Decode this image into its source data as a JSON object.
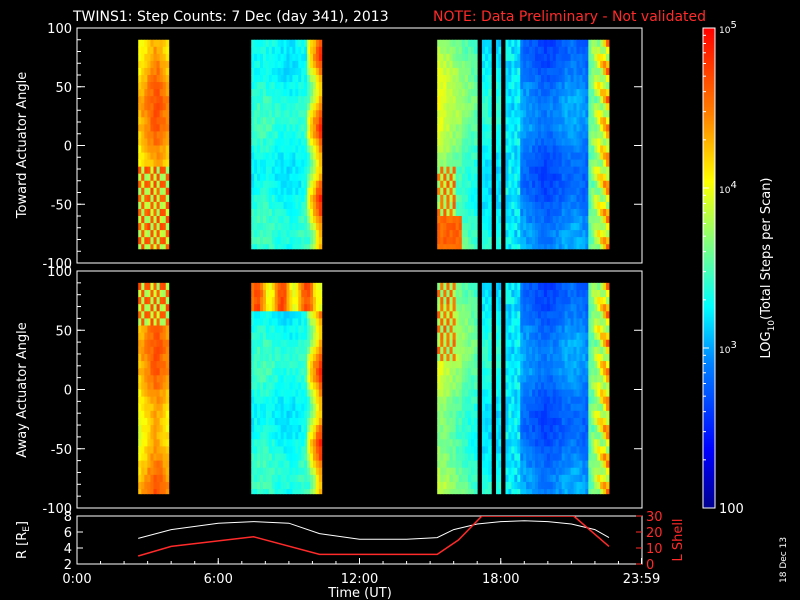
{
  "title": {
    "main": "TWINS1: Step Counts:  7 Dec (day 341), 2013",
    "note": "NOTE: Data Preliminary - Not validated"
  },
  "colors": {
    "background": "#000000",
    "axes": "#ffffff",
    "note": "#ff2a2a",
    "r_line": "#ffffff",
    "lshell_line": "#ff2a2a"
  },
  "chart_data": [
    {
      "type": "heatmap",
      "name": "toward-panel",
      "ylabel": "Toward Actuator Angle",
      "ylim": [
        -100,
        100
      ],
      "yticks": [
        100,
        50,
        0,
        -50,
        -100
      ],
      "xlim": [
        0,
        24
      ],
      "data_blocks_hours": [
        [
          2.6,
          3.9
        ],
        [
          7.4,
          10.4
        ],
        [
          15.3,
          17.0
        ],
        [
          17.2,
          17.6
        ],
        [
          17.8,
          18.0
        ],
        [
          18.2,
          22.6
        ]
      ],
      "angle_range": [
        -88,
        90
      ],
      "colormap": "rainbow (log scale)"
    },
    {
      "type": "heatmap",
      "name": "away-panel",
      "ylabel": "Away Actuator Angle",
      "ylim": [
        -100,
        100
      ],
      "yticks": [
        100,
        50,
        0,
        -50,
        -100
      ],
      "xlim": [
        0,
        24
      ],
      "data_blocks_hours": [
        [
          2.6,
          3.9
        ],
        [
          7.4,
          10.4
        ],
        [
          15.3,
          17.0
        ],
        [
          17.2,
          17.6
        ],
        [
          17.8,
          18.0
        ],
        [
          18.2,
          22.6
        ]
      ],
      "angle_range": [
        -88,
        90
      ],
      "colormap": "rainbow (log scale)"
    },
    {
      "type": "line",
      "name": "orbit-panel",
      "ylabel_left": "R [RE]",
      "ylabel_right": "L Shell",
      "xlabel": "Time (UT)",
      "xticks": [
        "0:00",
        "6:00",
        "12:00",
        "18:00",
        "23:59"
      ],
      "xtick_hours": [
        0,
        6,
        12,
        18,
        23.98
      ],
      "ylim_left": [
        2,
        8
      ],
      "yticks_left": [
        2,
        4,
        6,
        8
      ],
      "ylim_right": [
        0,
        30
      ],
      "yticks_right": [
        0,
        10,
        20,
        30
      ],
      "series": [
        {
          "name": "R",
          "axis": "left",
          "x": [
            2.6,
            4,
            6,
            7.5,
            9,
            10.3,
            12,
            14,
            15.3,
            16,
            17,
            18,
            19,
            20,
            21,
            22,
            22.6
          ],
          "y": [
            5.2,
            6.3,
            7.1,
            7.3,
            7.1,
            5.8,
            5.1,
            5.1,
            5.3,
            6.3,
            7.0,
            7.3,
            7.4,
            7.3,
            7.0,
            6.3,
            5.3
          ]
        },
        {
          "name": "L Shell",
          "axis": "right",
          "x": [
            2.6,
            4,
            7.5,
            10.3,
            15.3,
            16.2,
            17.2,
            17.3,
            21.0,
            21.1,
            22.6
          ],
          "y": [
            5,
            11,
            17,
            6,
            6,
            15,
            30,
            30,
            30,
            30,
            11
          ]
        }
      ]
    }
  ],
  "colorbar": {
    "label": "LOG10(Total Steps per Scan)",
    "label_main": "LOG",
    "label_sub": "10",
    "label_rest": "(Total Steps per Scan)",
    "ticks": [
      {
        "base": "10",
        "exp": "5"
      },
      {
        "base": "10",
        "exp": "4"
      },
      {
        "base": "10",
        "exp": "3"
      },
      {
        "base": "100",
        "exp": ""
      }
    ],
    "range_log10": [
      2,
      5
    ]
  },
  "axis_labels": {
    "r_main": "R [R",
    "r_sub": "E",
    "r_close": "]",
    "lshell": "L Shell",
    "time": "Time (UT)"
  },
  "footer": {
    "date_stamp": "18 Dec 13"
  }
}
